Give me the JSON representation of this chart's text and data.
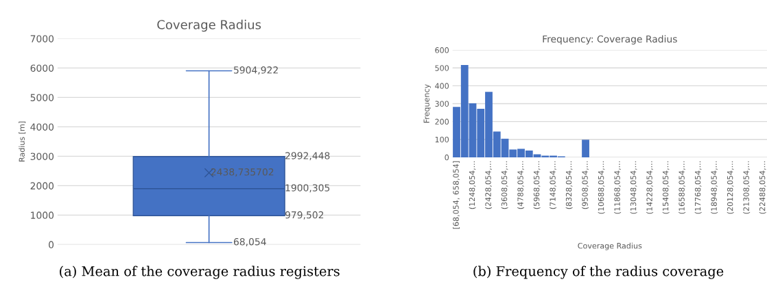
{
  "chart_data": [
    {
      "type": "box",
      "title": "Coverage Radius",
      "ylabel": "Radius [m]",
      "categories": [
        null
      ],
      "color": "#4472c4",
      "boxes": [
        {
          "low": 68.054,
          "q1": 979.502,
          "median": 1900.305,
          "q3": 2992.448,
          "high": 5904.922,
          "mean": 2438.735702
        }
      ],
      "ylim": [
        0,
        7000
      ],
      "yticks": [
        0,
        1000,
        2000,
        3000,
        4000,
        5000,
        6000,
        7000
      ],
      "grid": "y",
      "tick_labels": "y",
      "annotations": [
        "5904,922",
        "2992,448",
        "2438,735702",
        "1900,305",
        "979,502",
        "68,054",
        "(a) Mean of the coverage radius registers"
      ]
    },
    {
      "type": "bar",
      "title": "Frequency: Coverage Radius",
      "xlabel": "Coverage Radius",
      "ylabel": "Frequency",
      "color": "#4472c4",
      "categories": [
        "[68,054, 658,054]",
        null,
        "(1248,054,...",
        null,
        "(2428,054,...",
        null,
        "(3608,054,...",
        null,
        "(4788,054,...",
        null,
        "(5968,054,...",
        null,
        "(7148,054,...",
        null,
        "(8328,054,...",
        null,
        "(9508,054,...",
        null,
        "(10688,054,...",
        null,
        "(11868,054,...",
        null,
        "(13048,054,...",
        null,
        "(14228,054,...",
        null,
        "(15408,054,...",
        null,
        "(16588,054,...",
        null,
        "(17768,054,...",
        null,
        "(18948,054,...",
        null,
        "(20128,054,...",
        null,
        "(21308,054,...",
        null,
        "(22488,054,..."
      ],
      "values": [
        282,
        516,
        302,
        271,
        366,
        144,
        104,
        44,
        47,
        38,
        17,
        9,
        9,
        5,
        0,
        0,
        98,
        0,
        0,
        0,
        0,
        0,
        0,
        0,
        0,
        0,
        0,
        0,
        0,
        0,
        0,
        0,
        0,
        0,
        0,
        0,
        0,
        0,
        0
      ],
      "ylim": [
        0,
        600
      ],
      "yticks": [
        0,
        100,
        200,
        300,
        400,
        500,
        600
      ],
      "grid": "y",
      "annotations": [
        "(b) Frequency of the radius coverage"
      ]
    }
  ]
}
